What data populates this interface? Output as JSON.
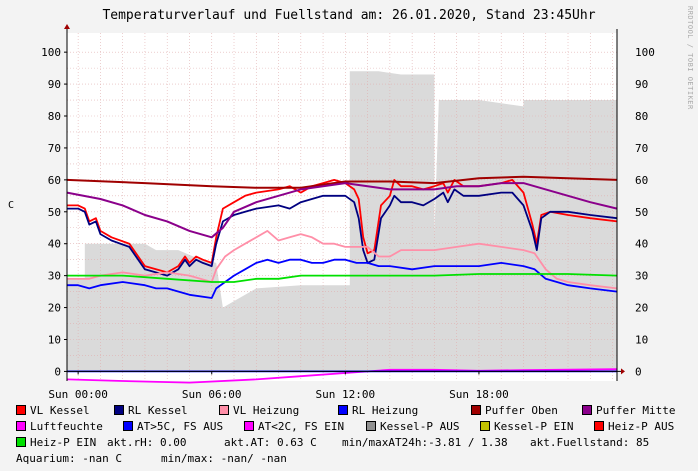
{
  "title": "Temperaturverlauf und Fuellstand am: 26.01.2020, Stand 23:45Uhr",
  "watermark": "RRDTOOL / TOBI OETIKER",
  "ylabel": "C",
  "colors": {
    "background": "#f3f3f3",
    "plot_bg": "#ffffff",
    "grid": "#e0b0b0",
    "axis": "#000000",
    "fill": "#dadada"
  },
  "legend": [
    {
      "label": "VL Kessel",
      "color": "#ff0000"
    },
    {
      "label": "RL Kessel",
      "color": "#000080"
    },
    {
      "label": "VL Heizung",
      "color": "#ff8fa8"
    },
    {
      "label": "RL Heizung",
      "color": "#0000ff"
    },
    {
      "label": "Puffer Oben",
      "color": "#a00000"
    },
    {
      "label": "Puffer Mitte",
      "color": "#8b008b"
    },
    {
      "label": "Luftfeuchte",
      "color": "#ff00ff"
    },
    {
      "label": "AT>5C, FS AUS",
      "color": "#0000ff"
    },
    {
      "label": "AT<2C, FS EIN",
      "color": "#ff00ff"
    },
    {
      "label": "Kessel-P AUS",
      "color": "#909090"
    },
    {
      "label": "Kessel-P EIN",
      "color": "#c0c000"
    },
    {
      "label": "Heiz-P AUS",
      "color": "#ff0000"
    },
    {
      "label": "Heiz-P EIN",
      "color": "#00e000"
    }
  ],
  "info": {
    "rh": "akt.rH: 0.00",
    "at": "akt.AT: 0.63 C",
    "minmax": "min/maxAT24h:-3.81 / 1.38",
    "fuellstand": "akt.Fuellstand:   85",
    "aquarium": "Aquarium: -nan C",
    "aq_minmax": "min/max: -nan/ -nan"
  },
  "chart_data": {
    "type": "line",
    "title": "Temperaturverlauf und Fuellstand am: 26.01.2020, Stand 23:45Uhr",
    "ylabel": "C",
    "ylim": [
      -3,
      106
    ],
    "xlim": [
      -0.5,
      24.2
    ],
    "yticks": [
      0,
      10,
      20,
      30,
      40,
      50,
      60,
      70,
      80,
      90,
      100
    ],
    "xticks": [
      {
        "label": "Sun 00:00",
        "x": 0
      },
      {
        "label": "Sun 06:00",
        "x": 6
      },
      {
        "label": "Sun 12:00",
        "x": 12
      },
      {
        "label": "Sun 18:00",
        "x": 18
      }
    ],
    "series": [
      {
        "name": "Fuellstand",
        "kind": "area",
        "color": "#dadada",
        "points": [
          [
            -0.5,
            29
          ],
          [
            0.3,
            29
          ],
          [
            0.3,
            40
          ],
          [
            3,
            40
          ],
          [
            3.5,
            38
          ],
          [
            4.5,
            38
          ],
          [
            5.5,
            35
          ],
          [
            6.2,
            34
          ],
          [
            6.5,
            20
          ],
          [
            7,
            22
          ],
          [
            8,
            26
          ],
          [
            10,
            27
          ],
          [
            11.5,
            27
          ],
          [
            12.2,
            27
          ],
          [
            12.2,
            94
          ],
          [
            13.5,
            94
          ],
          [
            14.5,
            93
          ],
          [
            16,
            93
          ],
          [
            16,
            43
          ],
          [
            16.2,
            85
          ],
          [
            18,
            85
          ],
          [
            19,
            84
          ],
          [
            20,
            83
          ],
          [
            20,
            85
          ],
          [
            24.2,
            85
          ]
        ]
      },
      {
        "name": "VL Kessel",
        "color": "#ff0000",
        "points": [
          [
            -0.5,
            52
          ],
          [
            0,
            52
          ],
          [
            0.3,
            51
          ],
          [
            0.5,
            47
          ],
          [
            0.8,
            48
          ],
          [
            1,
            44
          ],
          [
            1.5,
            42
          ],
          [
            2.3,
            40
          ],
          [
            3,
            33
          ],
          [
            4,
            31
          ],
          [
            4.5,
            33
          ],
          [
            4.8,
            36
          ],
          [
            5,
            34
          ],
          [
            5.3,
            36
          ],
          [
            5.6,
            35
          ],
          [
            6,
            34
          ],
          [
            6.2,
            42
          ],
          [
            6.5,
            51
          ],
          [
            7,
            53
          ],
          [
            7.5,
            55
          ],
          [
            8,
            56
          ],
          [
            9,
            57
          ],
          [
            9.5,
            58
          ],
          [
            10,
            56
          ],
          [
            10.5,
            58
          ],
          [
            11,
            59
          ],
          [
            11.5,
            60
          ],
          [
            12,
            59
          ],
          [
            12.4,
            57
          ],
          [
            12.6,
            54
          ],
          [
            12.8,
            42
          ],
          [
            13,
            37
          ],
          [
            13.3,
            38
          ],
          [
            13.6,
            52
          ],
          [
            14,
            55
          ],
          [
            14.2,
            60
          ],
          [
            14.5,
            58
          ],
          [
            15,
            58
          ],
          [
            15.5,
            57
          ],
          [
            16,
            58
          ],
          [
            16.4,
            59
          ],
          [
            16.6,
            56
          ],
          [
            16.9,
            60
          ],
          [
            17.3,
            58
          ],
          [
            18,
            58
          ],
          [
            19,
            59
          ],
          [
            19.5,
            60
          ],
          [
            20,
            56
          ],
          [
            20.4,
            46
          ],
          [
            20.6,
            40
          ],
          [
            20.8,
            49
          ],
          [
            21.2,
            50
          ],
          [
            22,
            49
          ],
          [
            23,
            48
          ],
          [
            24.2,
            47
          ]
        ]
      },
      {
        "name": "RL Kessel",
        "color": "#000080",
        "points": [
          [
            -0.5,
            51
          ],
          [
            0,
            51
          ],
          [
            0.3,
            50
          ],
          [
            0.5,
            46
          ],
          [
            0.8,
            47
          ],
          [
            1,
            43
          ],
          [
            1.5,
            41
          ],
          [
            2.3,
            39
          ],
          [
            3,
            32
          ],
          [
            4,
            30
          ],
          [
            4.5,
            32
          ],
          [
            4.8,
            35
          ],
          [
            5,
            33
          ],
          [
            5.3,
            35
          ],
          [
            5.6,
            34
          ],
          [
            6,
            33
          ],
          [
            6.2,
            40
          ],
          [
            6.5,
            47
          ],
          [
            7,
            49
          ],
          [
            7.5,
            50
          ],
          [
            8,
            51
          ],
          [
            9,
            52
          ],
          [
            9.5,
            51
          ],
          [
            10,
            53
          ],
          [
            10.5,
            54
          ],
          [
            11,
            55
          ],
          [
            11.5,
            55
          ],
          [
            12,
            55
          ],
          [
            12.4,
            53
          ],
          [
            12.6,
            48
          ],
          [
            12.8,
            38
          ],
          [
            13,
            34
          ],
          [
            13.3,
            35
          ],
          [
            13.6,
            48
          ],
          [
            14,
            52
          ],
          [
            14.2,
            55
          ],
          [
            14.5,
            53
          ],
          [
            15,
            53
          ],
          [
            15.5,
            52
          ],
          [
            16,
            54
          ],
          [
            16.4,
            56
          ],
          [
            16.6,
            53
          ],
          [
            16.9,
            57
          ],
          [
            17.3,
            55
          ],
          [
            18,
            55
          ],
          [
            19,
            56
          ],
          [
            19.5,
            56
          ],
          [
            20,
            52
          ],
          [
            20.4,
            44
          ],
          [
            20.6,
            38
          ],
          [
            20.8,
            48
          ],
          [
            21.2,
            50
          ],
          [
            22,
            50
          ],
          [
            23,
            49
          ],
          [
            24.2,
            48
          ]
        ]
      },
      {
        "name": "VL Heizung",
        "color": "#ff8fa8",
        "points": [
          [
            -0.5,
            29
          ],
          [
            0.5,
            29
          ],
          [
            1,
            30
          ],
          [
            2,
            31
          ],
          [
            3,
            30
          ],
          [
            4,
            31
          ],
          [
            5,
            30
          ],
          [
            6,
            28
          ],
          [
            6.2,
            32
          ],
          [
            6.6,
            36
          ],
          [
            7,
            38
          ],
          [
            7.5,
            40
          ],
          [
            8,
            42
          ],
          [
            8.5,
            44
          ],
          [
            9,
            41
          ],
          [
            9.5,
            42
          ],
          [
            10,
            43
          ],
          [
            10.5,
            42
          ],
          [
            11,
            40
          ],
          [
            11.5,
            40
          ],
          [
            12,
            39
          ],
          [
            12.5,
            39
          ],
          [
            13,
            39
          ],
          [
            13.5,
            36
          ],
          [
            14,
            36
          ],
          [
            14.5,
            38
          ],
          [
            15,
            38
          ],
          [
            16,
            38
          ],
          [
            17,
            39
          ],
          [
            18,
            40
          ],
          [
            19,
            39
          ],
          [
            20,
            38
          ],
          [
            20.5,
            37
          ],
          [
            21,
            32
          ],
          [
            21.5,
            29
          ],
          [
            22,
            28
          ],
          [
            23,
            27
          ],
          [
            24.2,
            26
          ]
        ]
      },
      {
        "name": "RL Heizung",
        "color": "#0000ff",
        "points": [
          [
            -0.5,
            27
          ],
          [
            0,
            27
          ],
          [
            0.5,
            26
          ],
          [
            1,
            27
          ],
          [
            2,
            28
          ],
          [
            3,
            27
          ],
          [
            3.5,
            26
          ],
          [
            4,
            26
          ],
          [
            5,
            24
          ],
          [
            6,
            23
          ],
          [
            6.2,
            26
          ],
          [
            6.6,
            28
          ],
          [
            7,
            30
          ],
          [
            7.5,
            32
          ],
          [
            8,
            34
          ],
          [
            8.5,
            35
          ],
          [
            9,
            34
          ],
          [
            9.5,
            35
          ],
          [
            10,
            35
          ],
          [
            10.5,
            34
          ],
          [
            11,
            34
          ],
          [
            11.5,
            35
          ],
          [
            12,
            35
          ],
          [
            12.5,
            34
          ],
          [
            13,
            34
          ],
          [
            13.5,
            33
          ],
          [
            14,
            33
          ],
          [
            15,
            32
          ],
          [
            16,
            33
          ],
          [
            17,
            33
          ],
          [
            18,
            33
          ],
          [
            19,
            34
          ],
          [
            20,
            33
          ],
          [
            20.5,
            32
          ],
          [
            21,
            29
          ],
          [
            21.5,
            28
          ],
          [
            22,
            27
          ],
          [
            23,
            26
          ],
          [
            24.2,
            25
          ]
        ]
      },
      {
        "name": "Puffer Oben",
        "color": "#a00000",
        "points": [
          [
            -0.5,
            60
          ],
          [
            3,
            59
          ],
          [
            6,
            58
          ],
          [
            8,
            57.5
          ],
          [
            10,
            57.5
          ],
          [
            12,
            59.5
          ],
          [
            14,
            59.5
          ],
          [
            16,
            59
          ],
          [
            18,
            60.5
          ],
          [
            20,
            61
          ],
          [
            22,
            60.5
          ],
          [
            24.2,
            60
          ]
        ]
      },
      {
        "name": "Puffer Mitte",
        "color": "#8b008b",
        "points": [
          [
            -0.5,
            56
          ],
          [
            1,
            54
          ],
          [
            2,
            52
          ],
          [
            3,
            49
          ],
          [
            4,
            47
          ],
          [
            5,
            44
          ],
          [
            6,
            42
          ],
          [
            6.5,
            45
          ],
          [
            7,
            50
          ],
          [
            8,
            53
          ],
          [
            9,
            55
          ],
          [
            10,
            57
          ],
          [
            11,
            58
          ],
          [
            12,
            59
          ],
          [
            13,
            58
          ],
          [
            14,
            57
          ],
          [
            15,
            57
          ],
          [
            16,
            57
          ],
          [
            17,
            58
          ],
          [
            18,
            58
          ],
          [
            19,
            59
          ],
          [
            20,
            59
          ],
          [
            21,
            57
          ],
          [
            22,
            55
          ],
          [
            23,
            53
          ],
          [
            24.2,
            51
          ]
        ]
      },
      {
        "name": "Luftfeuchte",
        "color": "#ff00ff",
        "points": [
          [
            -0.5,
            -2.5
          ],
          [
            2,
            -3
          ],
          [
            5,
            -3.5
          ],
          [
            8,
            -2.5
          ],
          [
            10,
            -1.5
          ],
          [
            12,
            -0.5
          ],
          [
            14,
            0.5
          ],
          [
            16,
            0.5
          ],
          [
            18,
            0.2
          ],
          [
            20,
            0.4
          ],
          [
            24.2,
            0.7
          ]
        ]
      },
      {
        "name": "Heiz-P EIN",
        "color": "#00e000",
        "points": [
          [
            -0.5,
            30
          ],
          [
            2,
            30
          ],
          [
            4,
            29
          ],
          [
            6,
            28
          ],
          [
            7,
            28
          ],
          [
            8,
            29
          ],
          [
            9,
            29
          ],
          [
            10,
            30
          ],
          [
            12,
            30
          ],
          [
            14,
            30
          ],
          [
            16,
            30
          ],
          [
            18,
            30.5
          ],
          [
            20,
            30.5
          ],
          [
            22,
            30.5
          ],
          [
            24.2,
            30
          ]
        ]
      },
      {
        "name": "AT>5C, FS AUS",
        "color": "#0000ff",
        "points": [
          [
            -0.5,
            0
          ],
          [
            24.2,
            0
          ]
        ]
      }
    ]
  }
}
